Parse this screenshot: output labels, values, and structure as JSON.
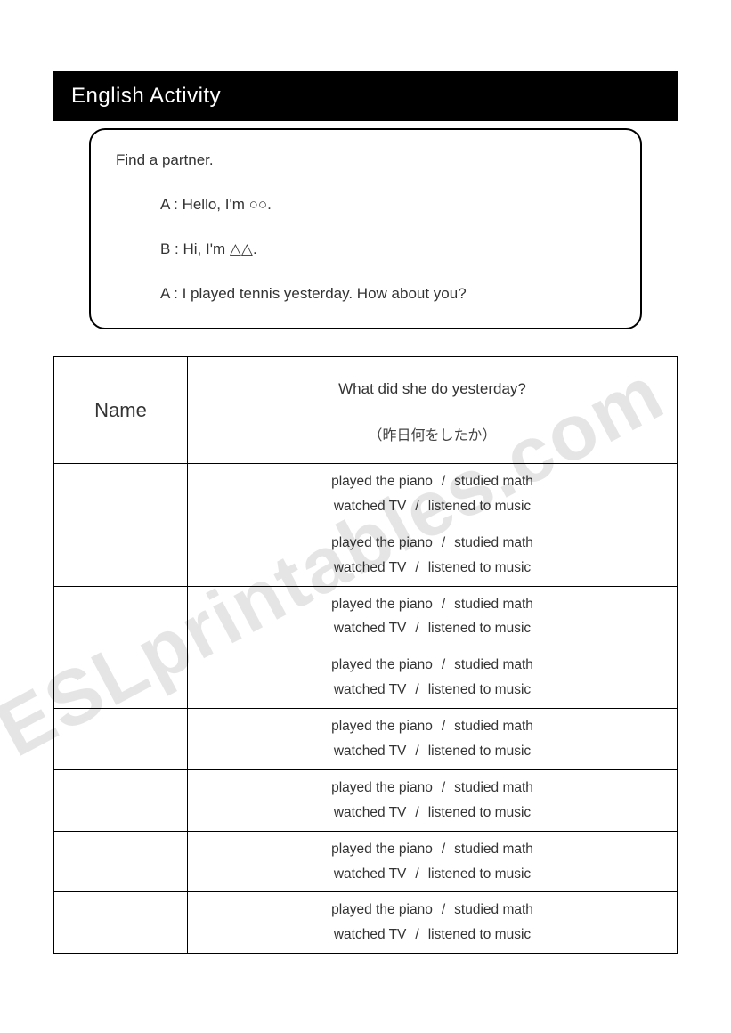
{
  "title": "English Activity",
  "dialogue": {
    "instruction": "Find a partner.",
    "lines": [
      "A : Hello, I'm  ○○.",
      "B : Hi, I'm  △△.",
      "A : I played tennis yesterday. How about you?"
    ]
  },
  "table": {
    "name_header": "Name",
    "question_header": "What did she do yesterday?",
    "question_sub_jp": "（昨日何をしたか）",
    "options": {
      "a": "played the piano",
      "b": "studied math",
      "c": "watched TV",
      "d": "listened to music"
    },
    "row_count": 8
  },
  "watermark": "ESLprintables.com",
  "style": {
    "title_bg": "#000000",
    "title_fg": "#ffffff",
    "border_color": "#000000",
    "text_color": "#333333",
    "watermark_color": "rgba(0,0,0,0.10)",
    "page_bg": "#ffffff",
    "title_fontsize": 24,
    "body_fontsize": 17,
    "table_fontsize": 15.5,
    "name_fontsize": 22
  }
}
